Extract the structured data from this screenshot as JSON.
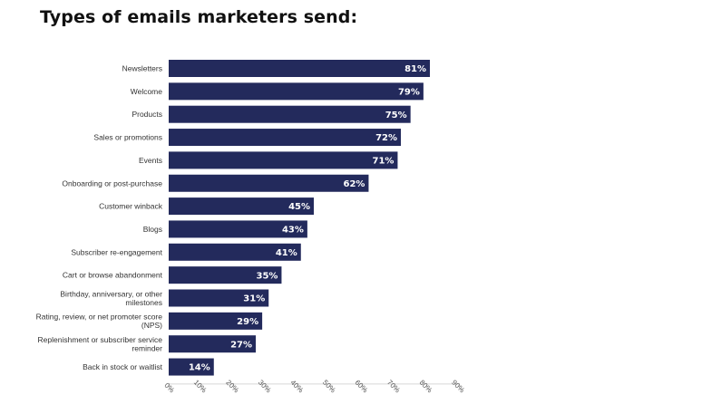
{
  "title": "Types of emails marketers send:",
  "chart_data": {
    "type": "bar",
    "orientation": "horizontal",
    "title": "Types of emails marketers send:",
    "categories": [
      [
        "Newsletters"
      ],
      [
        "Welcome"
      ],
      [
        "Products"
      ],
      [
        "Sales or promotions"
      ],
      [
        "Events"
      ],
      [
        "Onboarding or post-purchase"
      ],
      [
        "Customer winback"
      ],
      [
        "Blogs"
      ],
      [
        "Subscriber re-engagement"
      ],
      [
        "Cart or browse abandonment"
      ],
      [
        "Birthday, anniversary, or other",
        "milestones"
      ],
      [
        "Rating, review, or net promoter score",
        "(NPS)"
      ],
      [
        "Replenishment or subscriber service",
        "reminder"
      ],
      [
        "Back in stock or waitlist"
      ]
    ],
    "values": [
      81,
      79,
      75,
      72,
      71,
      62,
      45,
      43,
      41,
      35,
      31,
      29,
      27,
      14
    ],
    "value_labels": [
      "81%",
      "79%",
      "75%",
      "72%",
      "71%",
      "62%",
      "45%",
      "43%",
      "41%",
      "35%",
      "31%",
      "29%",
      "27%",
      "14%"
    ],
    "xlim": [
      0,
      90
    ],
    "xticks": [
      0,
      10,
      20,
      30,
      40,
      50,
      60,
      70,
      80,
      90
    ],
    "xtick_labels": [
      "0%",
      "10%",
      "20%",
      "30%",
      "40%",
      "50%",
      "60%",
      "70%",
      "80%",
      "90%"
    ],
    "grid": false,
    "bar_color": "#232a5c"
  }
}
